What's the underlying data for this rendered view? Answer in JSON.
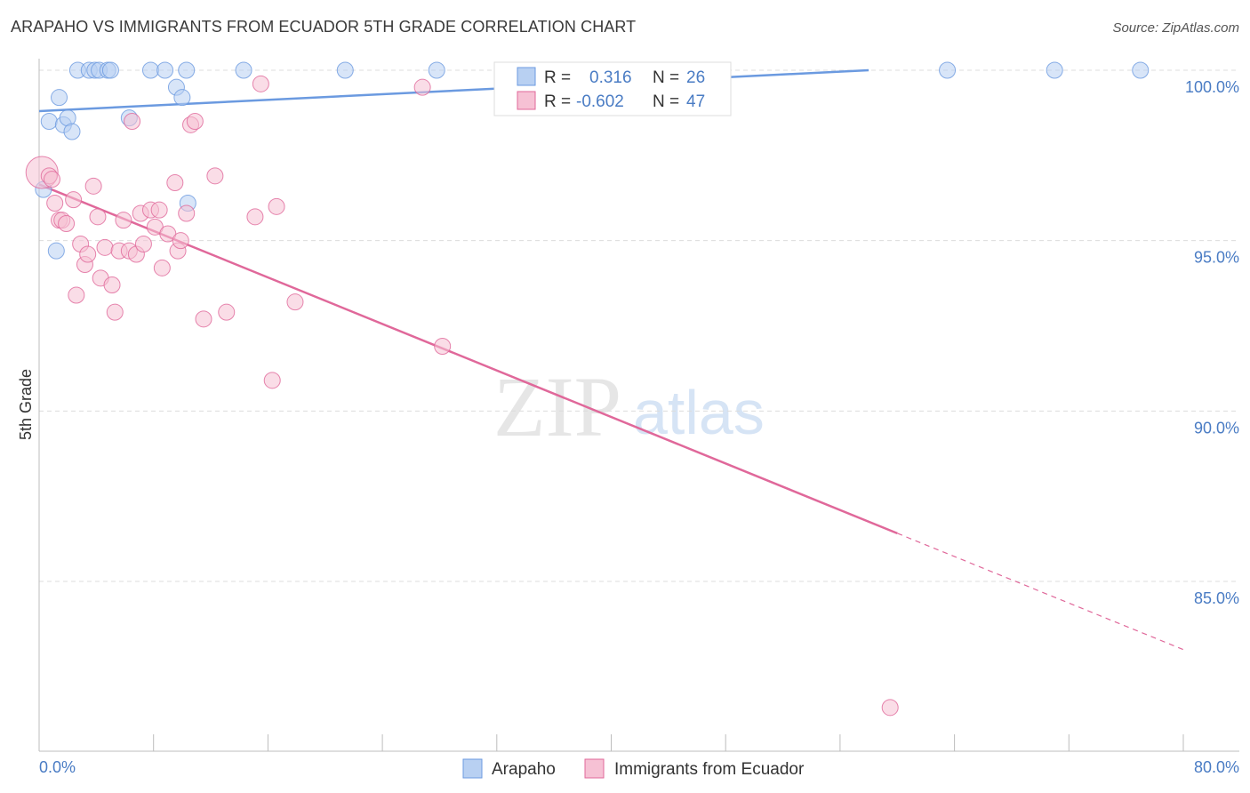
{
  "title": "ARAPAHO VS IMMIGRANTS FROM ECUADOR 5TH GRADE CORRELATION CHART",
  "source": "Source: ZipAtlas.com",
  "watermark": {
    "zip": "ZIP",
    "atlas": "atlas"
  },
  "chart_data": {
    "type": "scatter",
    "title": "ARAPAHO VS IMMIGRANTS FROM ECUADOR 5TH GRADE CORRELATION CHART",
    "xlabel": "",
    "ylabel": "5th Grade",
    "xlim": [
      0,
      80
    ],
    "ylim": [
      80.5,
      100.7
    ],
    "x_tick_labels": [
      "0.0%",
      "80.0%"
    ],
    "y_ticks": [
      85,
      90,
      95,
      100
    ],
    "y_tick_labels": [
      "85.0%",
      "90.0%",
      "95.0%",
      "100.0%"
    ],
    "legend": [
      {
        "series": "Arapaho",
        "r_label": "R =",
        "r": "0.316",
        "n_label": "N =",
        "n": "26"
      },
      {
        "series": "Immigrants from Ecuador",
        "r_label": "R =",
        "r": "-0.602",
        "n_label": "N =",
        "n": "47"
      }
    ],
    "series": [
      {
        "name": "Arapaho",
        "color": "#6b9ae0",
        "fill": "#b8d0f2",
        "trend": {
          "x0": 0,
          "y0": 98.8,
          "x1": 58,
          "y1": 100.0,
          "solid_to": 58
        },
        "points": [
          [
            0.3,
            96.5
          ],
          [
            0.7,
            98.5
          ],
          [
            1.2,
            94.7
          ],
          [
            1.4,
            99.2
          ],
          [
            1.7,
            98.4
          ],
          [
            2.0,
            98.6
          ],
          [
            2.3,
            98.2
          ],
          [
            2.7,
            100
          ],
          [
            3.5,
            100
          ],
          [
            3.9,
            100
          ],
          [
            4.2,
            100
          ],
          [
            4.8,
            100
          ],
          [
            5.0,
            100
          ],
          [
            6.3,
            98.6
          ],
          [
            7.8,
            100
          ],
          [
            8.8,
            100
          ],
          [
            9.6,
            99.5
          ],
          [
            10.0,
            99.2
          ],
          [
            10.3,
            100
          ],
          [
            10.4,
            96.1
          ],
          [
            14.3,
            100
          ],
          [
            21.4,
            100
          ],
          [
            27.8,
            100
          ],
          [
            63.5,
            100
          ],
          [
            71.0,
            100
          ],
          [
            77.0,
            100
          ]
        ]
      },
      {
        "name": "Immigrants from Ecuador",
        "color": "#e0689a",
        "fill": "#f6c1d4",
        "trend": {
          "x0": 0,
          "y0": 96.65,
          "x1": 80,
          "y1": 83.0,
          "solid_to": 60
        },
        "points": [
          [
            0.2,
            97.0
          ],
          [
            0.7,
            96.9
          ],
          [
            0.9,
            96.8
          ],
          [
            1.1,
            96.1
          ],
          [
            1.4,
            95.6
          ],
          [
            1.6,
            95.6
          ],
          [
            1.9,
            95.5
          ],
          [
            2.4,
            96.2
          ],
          [
            2.6,
            93.4
          ],
          [
            2.9,
            94.9
          ],
          [
            3.2,
            94.3
          ],
          [
            3.4,
            94.6
          ],
          [
            3.8,
            96.6
          ],
          [
            4.1,
            95.7
          ],
          [
            4.3,
            93.9
          ],
          [
            4.6,
            94.8
          ],
          [
            5.1,
            93.7
          ],
          [
            5.3,
            92.9
          ],
          [
            5.6,
            94.7
          ],
          [
            5.9,
            95.6
          ],
          [
            6.3,
            94.7
          ],
          [
            6.5,
            98.5
          ],
          [
            6.8,
            94.6
          ],
          [
            7.1,
            95.8
          ],
          [
            7.3,
            94.9
          ],
          [
            7.8,
            95.9
          ],
          [
            8.1,
            95.4
          ],
          [
            8.4,
            95.9
          ],
          [
            8.6,
            94.2
          ],
          [
            9.0,
            95.2
          ],
          [
            9.5,
            96.7
          ],
          [
            9.7,
            94.7
          ],
          [
            9.9,
            95.0
          ],
          [
            10.3,
            95.8
          ],
          [
            10.6,
            98.4
          ],
          [
            10.9,
            98.5
          ],
          [
            11.5,
            92.7
          ],
          [
            12.3,
            96.9
          ],
          [
            13.1,
            92.9
          ],
          [
            15.1,
            95.7
          ],
          [
            15.5,
            99.6
          ],
          [
            16.3,
            90.9
          ],
          [
            16.6,
            96.0
          ],
          [
            17.9,
            93.2
          ],
          [
            26.8,
            99.5
          ],
          [
            28.2,
            91.9
          ],
          [
            59.5,
            81.3
          ]
        ]
      }
    ]
  }
}
